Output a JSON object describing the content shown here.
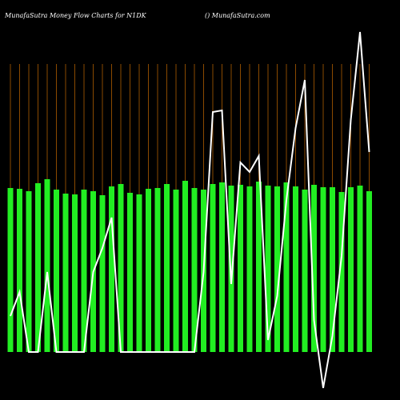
{
  "chart_data": {
    "type": "bar-line",
    "title": "MunafaSutra  Money Flow  Charts for N1DK",
    "subtitle": "() MunafaSutra.com",
    "categories": [
      null,
      null,
      null,
      null,
      null,
      null,
      null,
      null,
      null,
      null,
      null,
      null,
      null,
      null,
      null,
      null,
      null,
      null,
      null,
      null,
      null,
      null,
      null,
      null,
      null,
      null,
      null,
      null,
      null,
      null,
      null,
      null,
      null,
      null,
      null,
      null,
      null,
      null,
      null,
      null
    ],
    "ylim": [
      -60,
      440
    ],
    "series": [
      {
        "name": null,
        "kind": "bar",
        "color": "#22ee22",
        "values": [
          205,
          204,
          201,
          211,
          216,
          203,
          198,
          197,
          203,
          201,
          196,
          207,
          210,
          199,
          197,
          204,
          205,
          210,
          203,
          214,
          205,
          203,
          210,
          212,
          208,
          209,
          207,
          213,
          208,
          207,
          212,
          207,
          203,
          209,
          206,
          206,
          200,
          206,
          208,
          201
        ]
      },
      {
        "name": null,
        "kind": "line",
        "color": "#ffffff",
        "values": [
          45,
          75,
          0,
          0,
          100,
          0,
          0,
          0,
          0,
          100,
          130,
          168,
          0,
          0,
          0,
          0,
          0,
          0,
          0,
          0,
          0,
          100,
          300,
          302,
          85,
          237,
          225,
          245,
          15,
          70,
          190,
          280,
          340,
          40,
          -45,
          20,
          120,
          290,
          400,
          250
        ]
      }
    ]
  }
}
